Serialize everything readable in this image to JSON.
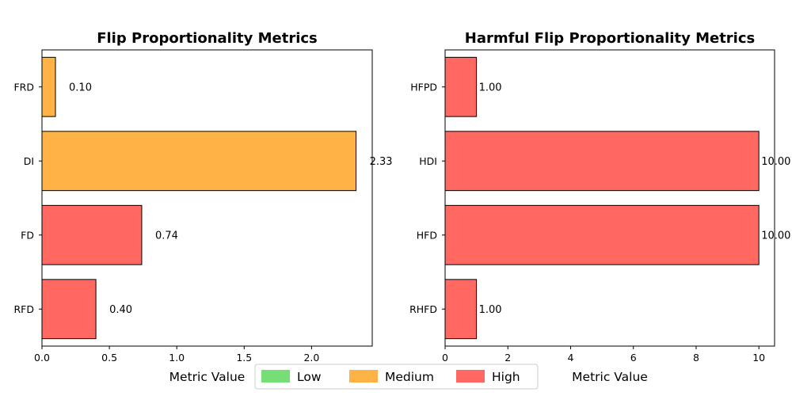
{
  "chart_data": [
    {
      "type": "bar",
      "orientation": "horizontal",
      "title": "Flip Proportionality Metrics",
      "xlabel": "Metric Value",
      "ylabel": "",
      "categories": [
        "FRD",
        "DI",
        "FD",
        "RFD"
      ],
      "values": [
        0.1,
        2.33,
        0.74,
        0.4
      ],
      "value_labels": [
        "0.10",
        "2.33",
        "0.74",
        "0.40"
      ],
      "levels": [
        "Medium",
        "Medium",
        "High",
        "High"
      ],
      "xlim": [
        0,
        2.45
      ],
      "xticks": [
        0,
        0.5,
        1.0,
        1.5,
        2.0
      ],
      "xtick_labels": [
        "0.0",
        "0.5",
        "1.0",
        "1.5",
        "2.0"
      ],
      "grid": false
    },
    {
      "type": "bar",
      "orientation": "horizontal",
      "title": "Harmful Flip Proportionality Metrics",
      "xlabel": "Metric Value",
      "ylabel": "",
      "categories": [
        "HFPD",
        "HDI",
        "HFD",
        "RHFD"
      ],
      "values": [
        1.0,
        10.0,
        10.0,
        1.0
      ],
      "value_labels": [
        "1.00",
        "10.00",
        "10.00",
        "1.00"
      ],
      "levels": [
        "High",
        "High",
        "High",
        "High"
      ],
      "xlim": [
        0,
        10.5
      ],
      "xticks": [
        0,
        2,
        4,
        6,
        8,
        10
      ],
      "xtick_labels": [
        "0",
        "2",
        "4",
        "6",
        "8",
        "10"
      ],
      "grid": false
    }
  ],
  "legend": {
    "placement": "bottom-center",
    "items": [
      {
        "label": "Low",
        "color": "#77dd77"
      },
      {
        "label": "Medium",
        "color": "#ffb347"
      },
      {
        "label": "High",
        "color": "#ff6961"
      }
    ]
  },
  "colors": {
    "Low": "#77dd77",
    "Medium": "#ffb347",
    "High": "#ff6961",
    "bar_edge": "#000000"
  }
}
